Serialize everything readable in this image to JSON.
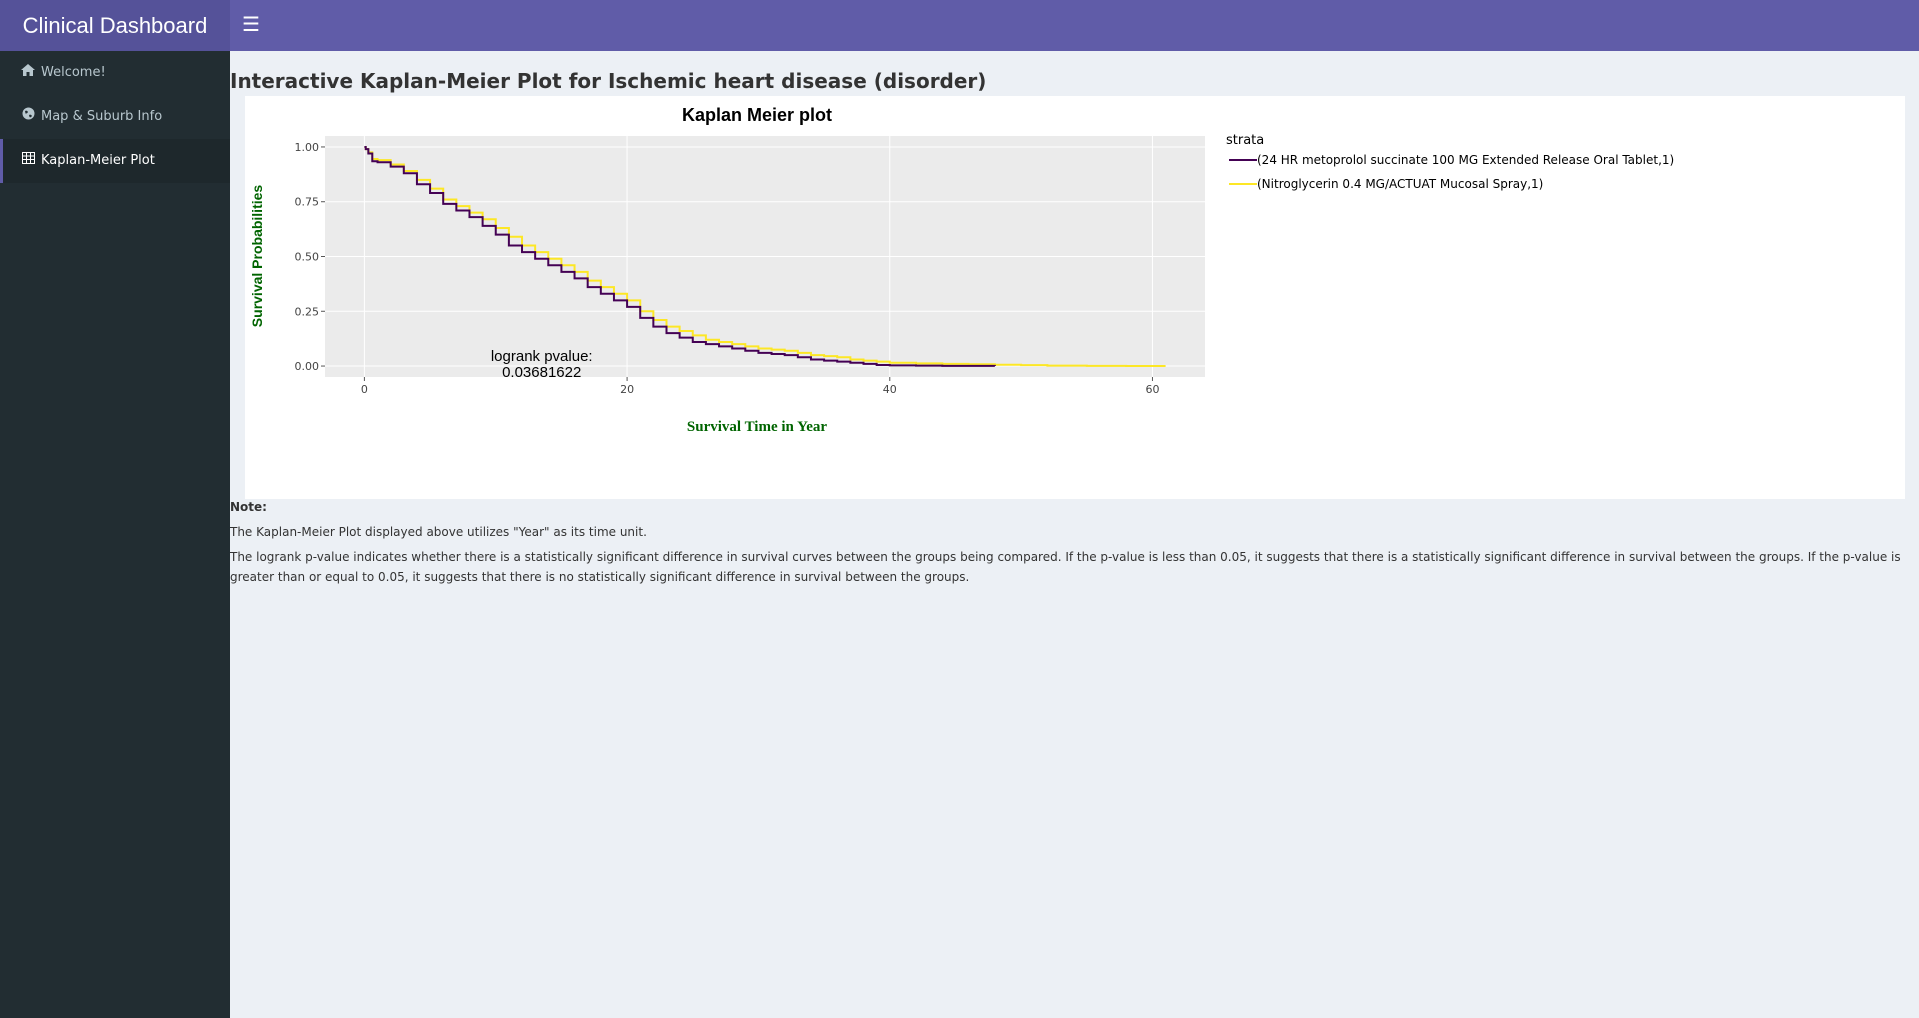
{
  "app": {
    "title": "Clinical Dashboard",
    "toggle_icon": "hamburger-menu-icon"
  },
  "sidebar": {
    "items": [
      {
        "label": "Welcome!",
        "icon": "home-icon",
        "active": false
      },
      {
        "label": "Map & Suburb Info",
        "icon": "globe-icon",
        "active": false
      },
      {
        "label": "Kaplan-Meier Plot",
        "icon": "table-icon",
        "active": true
      }
    ]
  },
  "main": {
    "title": "Interactive Kaplan-Meier Plot for Ischemic heart disease (disorder)",
    "note": {
      "title": "Note:",
      "line1": "The Kaplan-Meier Plot displayed above utilizes \"Year\" as its time unit.",
      "line2": "The logrank p-value indicates whether there is a statistically significant difference in survival curves between the groups being compared. If the p-value is less than 0.05, it suggests that there is a statistically significant difference in survival between the groups. If the p-value is greater than or equal to 0.05, it suggests that there is no statistically significant difference in survival between the groups."
    }
  },
  "chart_data": {
    "type": "line",
    "title": "Kaplan Meier plot",
    "xlabel": "Survival Time in Year",
    "ylabel": "Survival Probabilities",
    "xlim": [
      -3,
      64
    ],
    "ylim": [
      -0.05,
      1.05
    ],
    "x_ticks": [
      0,
      20,
      40,
      60
    ],
    "x_tick_labels": [
      "0",
      "20",
      "40",
      "60"
    ],
    "y_ticks": [
      0,
      0.25,
      0.5,
      0.75,
      1.0
    ],
    "y_tick_labels": [
      "0.00",
      "0.25",
      "0.50",
      "0.75",
      "1.00"
    ],
    "grid": true,
    "legend": {
      "title": "strata",
      "position": "right"
    },
    "annotation": {
      "line1": "logrank pvalue:",
      "line2": "0.03681622",
      "x": 13.5,
      "y": 0.0
    },
    "series": [
      {
        "name": "(24 HR metoprolol succinate 100 MG Extended Release Oral Tablet,1)",
        "color": "#440154",
        "x": [
          0,
          0.1,
          0.3,
          0.6,
          1,
          2,
          3,
          4,
          5,
          6,
          7,
          8,
          9,
          10,
          11,
          12,
          13,
          14,
          15,
          16,
          17,
          18,
          19,
          20,
          21,
          22,
          23,
          24,
          25,
          26,
          27,
          28,
          29,
          30,
          31,
          32,
          33,
          34,
          35,
          36,
          37,
          38,
          39,
          40,
          42,
          44,
          46,
          48
        ],
        "y": [
          1.0,
          0.99,
          0.97,
          0.935,
          0.93,
          0.91,
          0.88,
          0.83,
          0.79,
          0.74,
          0.71,
          0.68,
          0.64,
          0.6,
          0.55,
          0.52,
          0.49,
          0.46,
          0.43,
          0.4,
          0.36,
          0.33,
          0.3,
          0.27,
          0.22,
          0.18,
          0.15,
          0.13,
          0.11,
          0.1,
          0.09,
          0.08,
          0.07,
          0.06,
          0.055,
          0.05,
          0.04,
          0.03,
          0.025,
          0.02,
          0.015,
          0.01,
          0.005,
          0.003,
          0.002,
          0.001,
          0.001,
          0.0
        ]
      },
      {
        "name": "(Nitroglycerin 0.4 MG/ACTUAT Mucosal Spray,1)",
        "color": "#fde725",
        "x": [
          0,
          0.1,
          0.3,
          0.6,
          1,
          2,
          3,
          4,
          5,
          6,
          7,
          8,
          9,
          10,
          11,
          12,
          13,
          14,
          15,
          16,
          17,
          18,
          19,
          20,
          21,
          22,
          23,
          24,
          25,
          26,
          27,
          28,
          29,
          30,
          31,
          32,
          33,
          34,
          35,
          36,
          37,
          38,
          39,
          40,
          42,
          44,
          46,
          48,
          50,
          52,
          55,
          58,
          61
        ],
        "y": [
          1.0,
          0.99,
          0.975,
          0.945,
          0.94,
          0.92,
          0.89,
          0.85,
          0.81,
          0.76,
          0.73,
          0.7,
          0.67,
          0.63,
          0.59,
          0.55,
          0.52,
          0.49,
          0.46,
          0.43,
          0.39,
          0.36,
          0.33,
          0.3,
          0.25,
          0.21,
          0.18,
          0.16,
          0.14,
          0.12,
          0.11,
          0.1,
          0.09,
          0.08,
          0.075,
          0.07,
          0.06,
          0.05,
          0.045,
          0.04,
          0.03,
          0.025,
          0.02,
          0.015,
          0.012,
          0.01,
          0.008,
          0.006,
          0.004,
          0.002,
          0.001,
          0.0,
          0.0
        ]
      }
    ]
  }
}
